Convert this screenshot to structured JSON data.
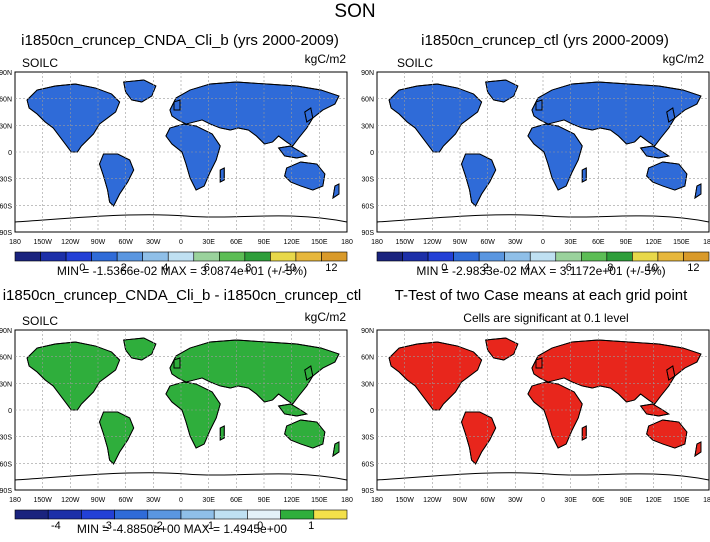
{
  "figure": {
    "title": "SON"
  },
  "axes": {
    "lat_labels": [
      "90N",
      "60N",
      "30N",
      "0",
      "30S",
      "60S",
      "90S"
    ],
    "lon_labels": [
      "180",
      "150W",
      "120W",
      "90W",
      "60W",
      "30W",
      "0",
      "30E",
      "60E",
      "90E",
      "120E",
      "150E",
      "180"
    ],
    "lat_range": [
      -90,
      90
    ],
    "lon_range": [
      -180,
      180
    ],
    "grid": true,
    "grid_style": "dashed"
  },
  "panels": [
    {
      "id": "panel-tl",
      "title": "i1850cn_cruncep_CNDA_Cli_b (yrs 2000-2009)",
      "left_label": "SOILC",
      "right_label": "kgC/m2",
      "stats": "MIN = -1.5366e-02 MAX = 3.0874e+01 (+/-5%)"
    },
    {
      "id": "panel-tr",
      "title": "i1850cn_cruncep_ctl (yrs 2000-2009)",
      "left_label": "SOILC",
      "right_label": "kgC/m2",
      "stats": "MIN = -2.9833e-02 MAX = 3.1172e+01 (+/-5%)"
    },
    {
      "id": "panel-bl",
      "title": "i1850cn_cruncep_CNDA_Cli_b - i1850cn_cruncep_ctl",
      "left_label": "SOILC",
      "right_label": "kgC/m2",
      "stats": "MIN = -4.8850e+00 MAX = 1.4945e+00"
    },
    {
      "id": "panel-br",
      "title": "T-Test of two Case means at each grid point",
      "left_label": "",
      "center_label": "Cells are significant at 0.1 level",
      "right_label": "",
      "stats": ""
    }
  ],
  "colorbars": {
    "top": {
      "labels": [
        "0",
        "2",
        "4",
        "6",
        "8",
        "10",
        "12"
      ],
      "colors": [
        "#1a237e",
        "#1c2fa8",
        "#2340d6",
        "#2f6bd8",
        "#5a96e0",
        "#8fbfe8",
        "#bfe0f2",
        "#9ad29c",
        "#5cbd55",
        "#2e9e3a",
        "#e8d84a",
        "#e7b73c",
        "#d99a2a"
      ]
    },
    "bottom": {
      "labels": [
        "-4",
        "-3",
        "-2",
        "-1",
        "0",
        "1"
      ],
      "colors": [
        "#1a237e",
        "#1c2fa8",
        "#2340d6",
        "#2f6bd8",
        "#5a96e0",
        "#8fbfe8",
        "#bfe0f2",
        "#e4f1f8",
        "#2fae3c",
        "#f3e04a"
      ]
    }
  },
  "chart_data": [
    {
      "type": "heatmap",
      "title": "i1850cn_cruncep_CNDA_Cli_b (yrs 2000-2009)",
      "variable": "SOILC",
      "units": "kgC/m2",
      "xlim": [
        -180,
        180
      ],
      "ylim": [
        -90,
        90
      ],
      "colorbar_ticks": [
        0,
        2,
        4,
        6,
        8,
        10,
        12
      ],
      "min": -0.015366,
      "max": 30.874
    },
    {
      "type": "heatmap",
      "title": "i1850cn_cruncep_ctl (yrs 2000-2009)",
      "variable": "SOILC",
      "units": "kgC/m2",
      "xlim": [
        -180,
        180
      ],
      "ylim": [
        -90,
        90
      ],
      "colorbar_ticks": [
        0,
        2,
        4,
        6,
        8,
        10,
        12
      ],
      "min": -0.029833,
      "max": 31.172
    },
    {
      "type": "heatmap",
      "title": "i1850cn_cruncep_CNDA_Cli_b - i1850cn_cruncep_ctl",
      "variable": "SOILC",
      "units": "kgC/m2",
      "xlim": [
        -180,
        180
      ],
      "ylim": [
        -90,
        90
      ],
      "colorbar_ticks": [
        -4,
        -3,
        -2,
        -1,
        0,
        1
      ],
      "min": -4.885,
      "max": 1.4945
    },
    {
      "type": "heatmap",
      "title": "T-Test of two Case means at each grid point",
      "annotation": "Cells are significant at 0.1 level",
      "xlim": [
        -180,
        180
      ],
      "ylim": [
        -90,
        90
      ]
    }
  ]
}
